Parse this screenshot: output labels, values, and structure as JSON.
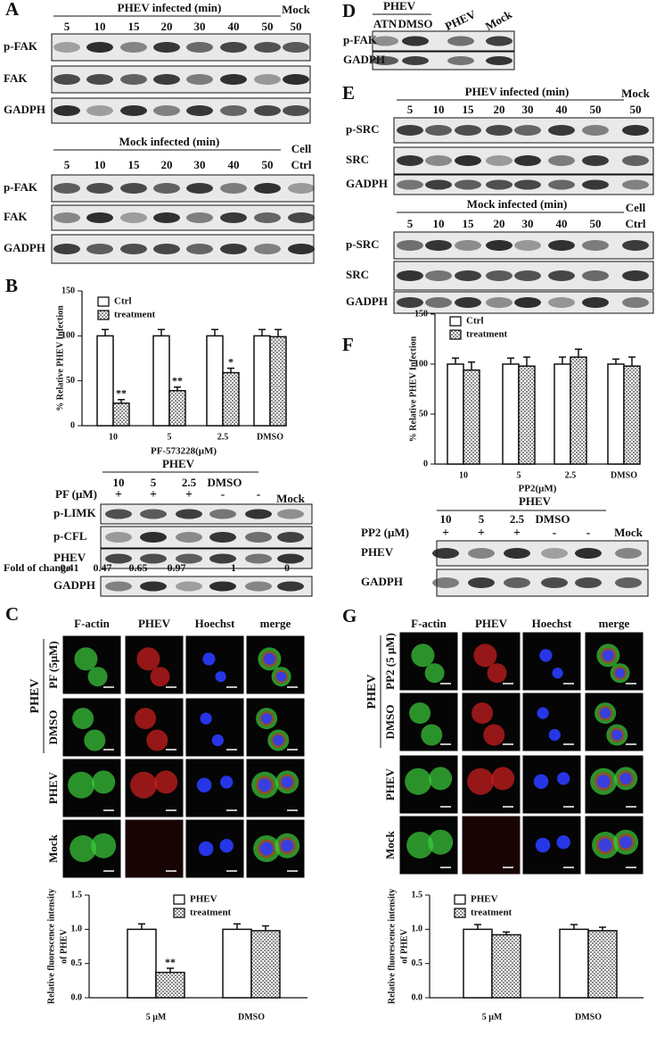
{
  "panel_a": {
    "label": "A",
    "blots": [
      {
        "header": "PHEV infected (min)",
        "lanes": [
          5,
          10,
          15,
          20,
          30,
          40,
          50
        ],
        "extra": [
          "Mock",
          50
        ],
        "rows": [
          "p-FAK",
          "FAK",
          "GADPH"
        ]
      },
      {
        "header": "Mock infected (min)",
        "lanes": [
          5,
          10,
          15,
          20,
          30,
          40,
          50
        ],
        "extra": [
          "Cell",
          "Ctrl"
        ],
        "rows": [
          "p-FAK",
          "FAK",
          "GADPH"
        ]
      }
    ]
  },
  "panel_b": {
    "label": "B",
    "blot": {
      "header": "PHEV",
      "lanes": [
        10,
        5,
        2.5,
        "DMSO"
      ],
      "treatment_label": "PF (μM)",
      "treatment": [
        "+",
        "+",
        "+",
        "-",
        "-"
      ],
      "control": "Mock",
      "rows": [
        "p-LIMK",
        "p-CFL",
        "PHEV"
      ],
      "fold_label": "Fold of change",
      "fold": [
        0.41,
        0.47,
        0.65,
        0.97,
        1,
        0
      ],
      "loading": "GADPH"
    }
  },
  "panel_c": {
    "label": "C",
    "columns": [
      "F-actin",
      "PHEV",
      "Hoechst",
      "merge"
    ],
    "rows": [
      "PF (5μM)",
      "DMSO",
      "PHEV",
      "Mock"
    ],
    "group": "PHEV"
  },
  "panel_d": {
    "label": "D",
    "header": "PHEV",
    "lanes": [
      "ATN",
      "DMSO",
      "PHEV",
      "Mock"
    ],
    "rows": [
      "p-FAK",
      "GADPH"
    ]
  },
  "panel_e": {
    "label": "E",
    "blots": [
      {
        "header": "PHEV infected (min)",
        "lanes": [
          5,
          10,
          15,
          20,
          30,
          40,
          50
        ],
        "extra": [
          "Mock",
          50
        ],
        "rows": [
          "p-SRC",
          "SRC",
          "GADPH"
        ]
      },
      {
        "header": "Mock infected (min)",
        "lanes": [
          5,
          10,
          15,
          20,
          30,
          40,
          50
        ],
        "extra": [
          "Cell",
          "Ctrl"
        ],
        "rows": [
          "p-SRC",
          "SRC",
          "GADPH"
        ]
      }
    ]
  },
  "panel_f": {
    "label": "F",
    "blot": {
      "header": "PHEV",
      "lanes": [
        10,
        5,
        2.5,
        "DMSO"
      ],
      "treatment_label": "PP2 (μM)",
      "treatment": [
        "+",
        "+",
        "+",
        "-",
        "-"
      ],
      "control": "Mock",
      "rows": [
        "PHEV",
        "GADPH"
      ]
    }
  },
  "panel_g": {
    "label": "G",
    "columns": [
      "F-actin",
      "PHEV",
      "Hoechst",
      "merge"
    ],
    "rows": [
      "PP2 (5 μM)",
      "DMSO",
      "PHEV",
      "Mock"
    ],
    "group": "PHEV"
  },
  "chart_data": [
    {
      "type": "bar",
      "ylabel": "% Relative PHEV Infection",
      "xlabel": "PF-573228(μM)",
      "categories": [
        "10",
        "5",
        "2.5",
        "DMSO"
      ],
      "series": [
        {
          "name": "Ctrl",
          "color": "#ffffff",
          "values": [
            100,
            100,
            100,
            100
          ],
          "errors": [
            7,
            7,
            7,
            7
          ]
        },
        {
          "name": "treatment",
          "color": "#8a8a8a",
          "pattern": "checker",
          "values": [
            25,
            39,
            59,
            99
          ],
          "errors": [
            4,
            4,
            5,
            8
          ],
          "annotations": [
            "**",
            "**",
            "*",
            null
          ]
        }
      ],
      "ylim": [
        0,
        150
      ],
      "yticks": [
        0,
        50,
        100,
        150
      ]
    },
    {
      "type": "bar",
      "ylabel": "% Relative PHEV Infection",
      "xlabel": "PP2(μM)",
      "categories": [
        "10",
        "5",
        "2.5",
        "DMSO"
      ],
      "series": [
        {
          "name": "Ctrl",
          "color": "#ffffff",
          "values": [
            100,
            100,
            100,
            100
          ],
          "errors": [
            6,
            6,
            7,
            5
          ]
        },
        {
          "name": "treatment",
          "color": "#8a8a8a",
          "pattern": "checker",
          "values": [
            94,
            98,
            107,
            98
          ],
          "errors": [
            8,
            9,
            8,
            9
          ]
        }
      ],
      "ylim": [
        0,
        150
      ],
      "yticks": [
        0,
        50,
        100,
        150
      ]
    },
    {
      "type": "bar",
      "ylabel": [
        "Relative fluorescence intensity",
        "of PHEV"
      ],
      "categories": [
        "5 μM",
        "DMSO"
      ],
      "series": [
        {
          "name": "PHEV",
          "color": "#ffffff",
          "values": [
            1.0,
            1.0
          ],
          "errors": [
            0.08,
            0.08
          ]
        },
        {
          "name": "treatment",
          "color": "#8a8a8a",
          "pattern": "checker",
          "values": [
            0.37,
            0.98
          ],
          "errors": [
            0.06,
            0.07
          ],
          "annotations": [
            "**",
            null
          ]
        }
      ],
      "ylim": [
        0,
        1.5
      ],
      "yticks": [
        {
          "value": 0,
          "label": "0.0"
        },
        0.5,
        {
          "value": 1,
          "label": "1.0"
        },
        1.5
      ]
    },
    {
      "type": "bar",
      "ylabel": [
        "Relative fluorescence intensity",
        "of PHEV"
      ],
      "categories": [
        "5 μM",
        "DMSO"
      ],
      "series": [
        {
          "name": "PHEV",
          "color": "#ffffff",
          "values": [
            1.0,
            1.0
          ],
          "errors": [
            0.07,
            0.07
          ]
        },
        {
          "name": "treatment",
          "color": "#8a8a8a",
          "pattern": "checker",
          "values": [
            0.92,
            0.98
          ],
          "errors": [
            0.04,
            0.05
          ]
        }
      ],
      "ylim": [
        0,
        1.5
      ],
      "yticks": [
        {
          "value": 0,
          "label": "0.0"
        },
        0.5,
        {
          "value": 1,
          "label": "1.0"
        },
        1.5
      ]
    }
  ]
}
